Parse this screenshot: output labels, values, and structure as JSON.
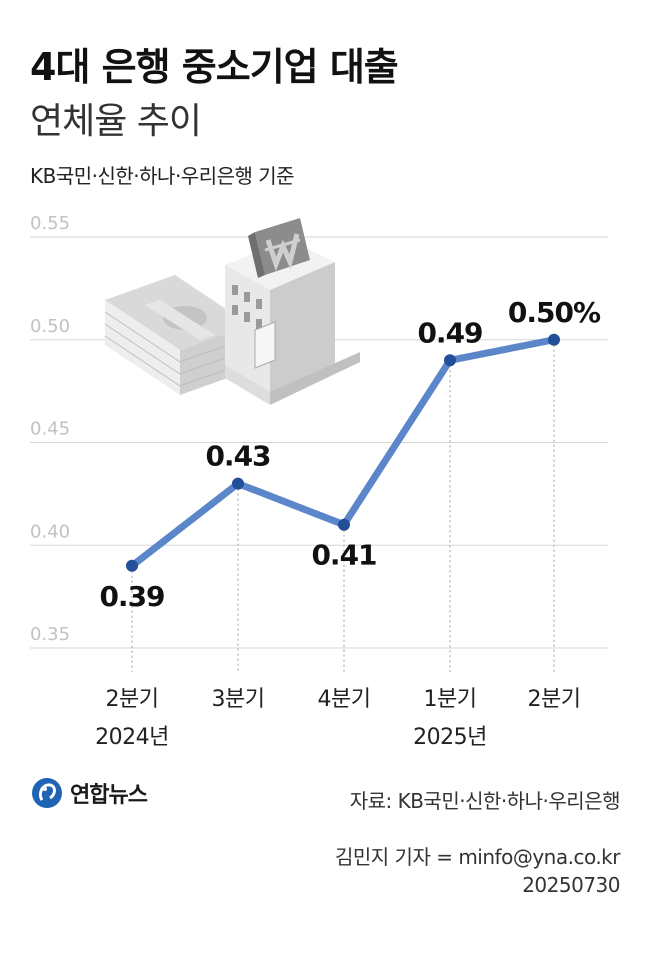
{
  "header": {
    "title": "4대 은행 중소기업 대출",
    "subtitle": "연체율 추이",
    "note": "KB국민·신한·하나·우리은행 기준"
  },
  "chart_data": {
    "type": "line",
    "x": [
      "2분기",
      "3분기",
      "4분기",
      "1분기",
      "2분기"
    ],
    "year_labels": [
      "2024년",
      "",
      "",
      "2025년",
      ""
    ],
    "values": [
      0.39,
      0.43,
      0.41,
      0.49,
      0.5
    ],
    "data_labels": [
      "0.39",
      "0.43",
      "0.41",
      "0.49",
      "0.50%"
    ],
    "yticks": [
      "0.55",
      "0.50",
      "0.45",
      "0.40",
      "0.35"
    ],
    "ylim": [
      0.35,
      0.55
    ],
    "grid": true,
    "line_color": "#5b86c9",
    "point_color": "#234f99"
  },
  "footer": {
    "logo": "연합뉴스",
    "source": "자료: KB국민·신한·하나·우리은행",
    "credit": "김민지 기자 = minfo@yna.co.kr",
    "date": "20250730"
  }
}
